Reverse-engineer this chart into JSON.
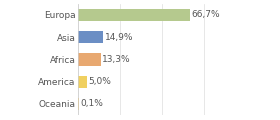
{
  "categories": [
    "Europa",
    "Asia",
    "Africa",
    "America",
    "Oceania"
  ],
  "values": [
    66.7,
    14.9,
    13.3,
    5.0,
    0.1
  ],
  "labels": [
    "66,7%",
    "14,9%",
    "13,3%",
    "5,0%",
    "0,1%"
  ],
  "bar_colors": [
    "#b5c98e",
    "#6b8ec4",
    "#e8a870",
    "#f0d060",
    "#f0c060"
  ],
  "background_color": "#ffffff",
  "label_fontsize": 6.5,
  "tick_fontsize": 6.5,
  "xlim": [
    0,
    100
  ],
  "grid_ticks": [
    0,
    25,
    50,
    75,
    100
  ],
  "grid_color": "#dddddd",
  "text_color": "#555555"
}
